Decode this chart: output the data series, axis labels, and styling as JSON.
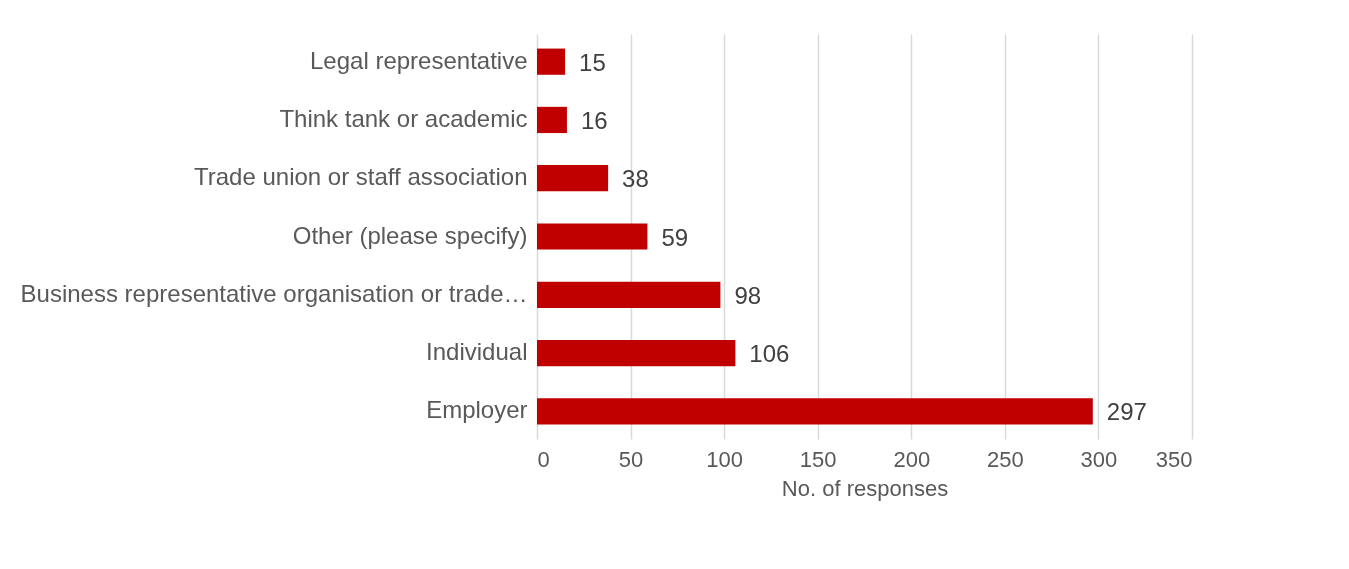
{
  "chart_data": {
    "type": "bar",
    "orientation": "horizontal",
    "xlabel": "No. of responses",
    "categories": [
      "Legal representative",
      "Think tank or academic",
      "Trade union or staff association",
      "Other (please specify)",
      "Business representative organisation or trade…",
      "Individual",
      "Employer"
    ],
    "values": [
      15,
      16,
      38,
      59,
      98,
      106,
      297
    ],
    "color": "#c00000",
    "xlim": [
      0,
      350
    ],
    "xticks": [
      0,
      50,
      100,
      150,
      200,
      250,
      300,
      350
    ],
    "grid": "x",
    "data_labels": true
  }
}
